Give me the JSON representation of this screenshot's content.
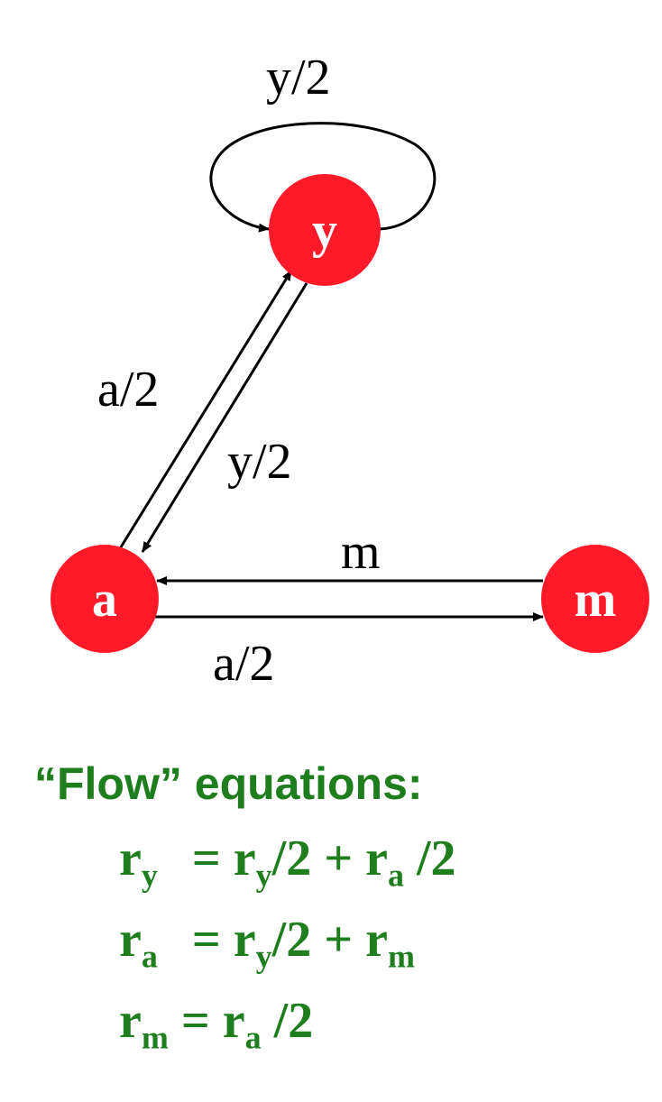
{
  "graph": {
    "nodes": {
      "y": {
        "label": "y",
        "color": "#ff1a2a"
      },
      "a": {
        "label": "a",
        "color": "#ff1a2a"
      },
      "m": {
        "label": "m",
        "color": "#ff1a2a"
      }
    },
    "edges": {
      "y_to_y": {
        "label": "y/2"
      },
      "a_to_y": {
        "label": "a/2"
      },
      "y_to_a": {
        "label": "y/2"
      },
      "m_to_a": {
        "label": "m"
      },
      "a_to_m": {
        "label": "a/2"
      }
    }
  },
  "equations": {
    "title": "“Flow” equations:",
    "color": "#1e7e1e",
    "eq1": {
      "lhs": "r",
      "lhs_sub": "y",
      "eq": "=",
      "t1": "r",
      "t1_sub": "y",
      "t1_tail": "/2",
      "plus": "+",
      "t2": "r",
      "t2_sub": "a",
      "t2_tail": "/2"
    },
    "eq2": {
      "lhs": "r",
      "lhs_sub": "a",
      "eq": "=",
      "t1": "r",
      "t1_sub": "y",
      "t1_tail": "/2",
      "plus": "+",
      "t2": "r",
      "t2_sub": "m"
    },
    "eq3": {
      "lhs": "r",
      "lhs_sub": "m",
      "eq": "=",
      "t1": "r",
      "t1_sub": "a",
      "t1_tail": "/2"
    }
  }
}
